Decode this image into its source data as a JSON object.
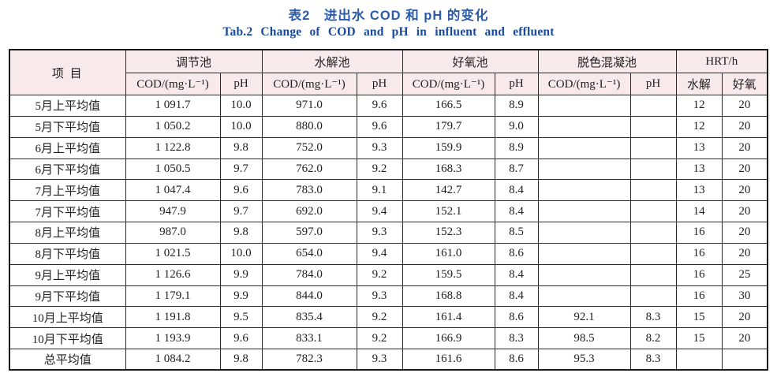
{
  "titles": {
    "zh": "表2　进出水 COD 和 pH 的变化",
    "en": "Tab.2  Change of COD and pH in influent and effluent"
  },
  "colors": {
    "title_zh": "#2b5cab",
    "title_en": "#17499d",
    "header_bg": "#f8e9ec",
    "border": "#1a1a1a",
    "text": "#1f1f1f"
  },
  "table": {
    "item_header": "项 目",
    "groups": [
      {
        "label": "调节池",
        "sub": [
          "COD/(mg·L⁻¹)",
          "pH"
        ]
      },
      {
        "label": "水解池",
        "sub": [
          "COD/(mg·L⁻¹)",
          "pH"
        ]
      },
      {
        "label": "好氧池",
        "sub": [
          "COD/(mg·L⁻¹)",
          "pH"
        ]
      },
      {
        "label": "脱色混凝池",
        "sub": [
          "COD/(mg·L⁻¹)",
          "pH"
        ]
      },
      {
        "label": "HRT/h",
        "sub": [
          "水解",
          "好氧"
        ]
      }
    ],
    "rows": [
      {
        "label": "5月上平均值",
        "cells": [
          "1 091.7",
          "10.0",
          "971.0",
          "9.6",
          "166.5",
          "8.9",
          "",
          "",
          "12",
          "20"
        ]
      },
      {
        "label": "5月下平均值",
        "cells": [
          "1 050.2",
          "10.0",
          "880.0",
          "9.6",
          "179.7",
          "9.0",
          "",
          "",
          "12",
          "20"
        ]
      },
      {
        "label": "6月上平均值",
        "cells": [
          "1 122.8",
          "9.8",
          "752.0",
          "9.3",
          "159.9",
          "8.9",
          "",
          "",
          "13",
          "20"
        ]
      },
      {
        "label": "6月下平均值",
        "cells": [
          "1 050.5",
          "9.7",
          "762.0",
          "9.2",
          "168.3",
          "8.7",
          "",
          "",
          "13",
          "20"
        ]
      },
      {
        "label": "7月上平均值",
        "cells": [
          "1 047.4",
          "9.6",
          "783.0",
          "9.1",
          "142.7",
          "8.4",
          "",
          "",
          "13",
          "20"
        ]
      },
      {
        "label": "7月下平均值",
        "cells": [
          "947.9",
          "9.7",
          "692.0",
          "9.4",
          "152.1",
          "8.4",
          "",
          "",
          "14",
          "20"
        ]
      },
      {
        "label": "8月上平均值",
        "cells": [
          "987.0",
          "9.8",
          "597.0",
          "9.3",
          "152.3",
          "8.5",
          "",
          "",
          "16",
          "20"
        ]
      },
      {
        "label": "8月下平均值",
        "cells": [
          "1 021.5",
          "10.0",
          "654.0",
          "9.4",
          "161.0",
          "8.6",
          "",
          "",
          "16",
          "20"
        ]
      },
      {
        "label": "9月上平均值",
        "cells": [
          "1 126.6",
          "9.9",
          "784.0",
          "9.2",
          "159.5",
          "8.4",
          "",
          "",
          "16",
          "25"
        ]
      },
      {
        "label": "9月下平均值",
        "cells": [
          "1 179.1",
          "9.9",
          "844.0",
          "9.3",
          "168.8",
          "8.4",
          "",
          "",
          "16",
          "30"
        ]
      },
      {
        "label": "10月上平均值",
        "cells": [
          "1 191.8",
          "9.5",
          "835.4",
          "9.2",
          "161.4",
          "8.6",
          "92.1",
          "8.3",
          "15",
          "20"
        ]
      },
      {
        "label": "10月下平均值",
        "cells": [
          "1 193.9",
          "9.6",
          "833.1",
          "9.2",
          "166.9",
          "8.3",
          "98.5",
          "8.2",
          "15",
          "20"
        ]
      },
      {
        "label": "总平均值",
        "cells": [
          "1 084.2",
          "9.8",
          "782.3",
          "9.3",
          "161.6",
          "8.6",
          "95.3",
          "8.3",
          "",
          ""
        ]
      }
    ]
  }
}
